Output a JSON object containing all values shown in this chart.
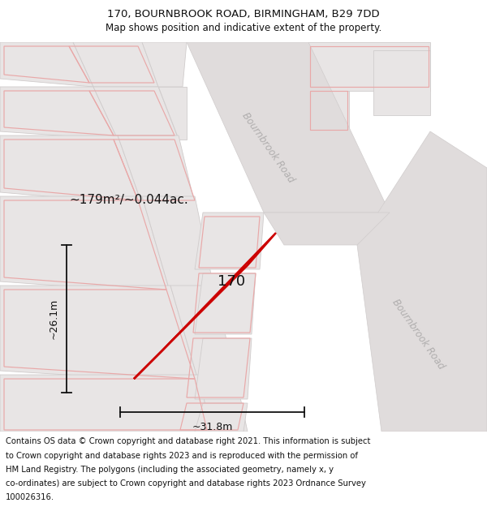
{
  "title_line1": "170, BOURNBROOK ROAD, BIRMINGHAM, B29 7DD",
  "title_line2": "Map shows position and indicative extent of the property.",
  "footer_lines": [
    "Contains OS data © Crown copyright and database right 2021. This information is subject",
    "to Crown copyright and database rights 2023 and is reproduced with the permission of",
    "HM Land Registry. The polygons (including the associated geometry, namely x, y",
    "co-ordinates) are subject to Crown copyright and database rights 2023 Ordnance Survey",
    "100026316."
  ],
  "area_label": "~179m²/~0.044ac.",
  "property_number": "170",
  "dim_width": "~31.8m",
  "dim_height": "~26.1m",
  "road_label_top": "Bournbrook Road",
  "road_label_right": "Bournbrook Road",
  "map_bg": "#f5f2f2",
  "road_fill": "#e0dcdc",
  "block_fill": "#e8e5e5",
  "block_edge": "#d0cccc",
  "plot_edge": "#e8a8a8",
  "highlight_color": "#cc0000",
  "title_fontsize": 9.5,
  "subtitle_fontsize": 8.5,
  "footer_fontsize": 7.2
}
